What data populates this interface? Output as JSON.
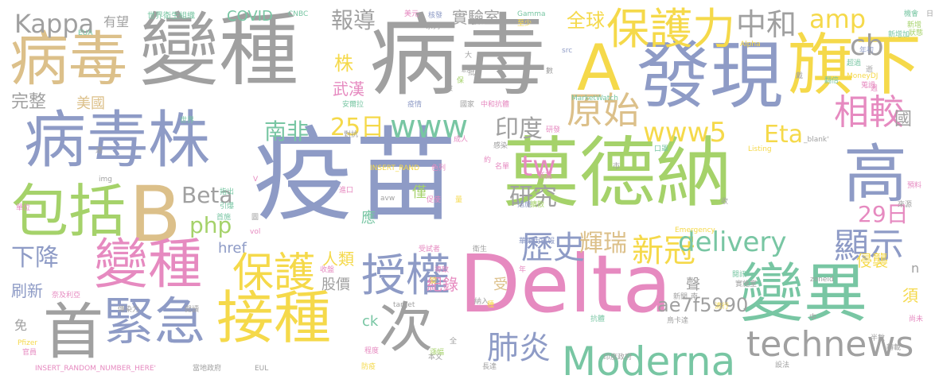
{
  "colors": {
    "background": "#ffffff",
    "gray": "#a0a0a0",
    "blue": "#8e9bc6",
    "green": "#a5d26a",
    "pink": "#e68ac0",
    "yellow": "#f5d94a",
    "tan": "#dcc08a",
    "teal": "#78c6a3",
    "orange": "#ee9a74"
  },
  "words": [
    {
      "text": "疫苗",
      "color": "blue"
    },
    {
      "text": "病毒",
      "color": "gray"
    },
    {
      "text": "變種",
      "color": "gray"
    },
    {
      "text": "Delta",
      "color": "pink"
    },
    {
      "text": "莫德納",
      "color": "green"
    },
    {
      "text": "病毒",
      "color": "tan"
    },
    {
      "text": "病毒株",
      "color": "blue"
    },
    {
      "text": "發現",
      "color": "blue"
    },
    {
      "text": "A",
      "color": "yellow"
    },
    {
      "text": "旗下",
      "color": "yellow"
    },
    {
      "text": "B",
      "color": "tan"
    },
    {
      "text": "包括",
      "color": "green"
    },
    {
      "text": "變種",
      "color": "pink"
    },
    {
      "text": "接種",
      "color": "yellow"
    },
    {
      "text": "首",
      "color": "gray"
    },
    {
      "text": "緊急",
      "color": "blue"
    },
    {
      "text": "變異",
      "color": "teal"
    },
    {
      "text": "高",
      "color": "blue"
    },
    {
      "text": "次",
      "color": "gray"
    },
    {
      "text": "授權",
      "color": "blue"
    },
    {
      "text": "Moderna",
      "color": "teal"
    },
    {
      "text": "technews",
      "color": "gray"
    },
    {
      "text": "保護力",
      "color": "yellow"
    },
    {
      "text": "保護",
      "color": "yellow"
    },
    {
      "text": "Kappa",
      "color": "gray"
    },
    {
      "text": "中和",
      "color": "gray"
    },
    {
      "text": "amp",
      "color": "yellow"
    },
    {
      "text": "cb",
      "color": "gray"
    },
    {
      "text": "相較",
      "color": "pink"
    },
    {
      "text": "原始",
      "color": "tan"
    },
    {
      "text": "www5",
      "color": "yellow"
    },
    {
      "text": "Eta",
      "color": "yellow"
    },
    {
      "text": "www",
      "color": "teal"
    },
    {
      "text": "印度",
      "color": "gray"
    },
    {
      "text": "25日",
      "color": "yellow"
    },
    {
      "text": "南非",
      "color": "teal"
    },
    {
      "text": "tw",
      "color": "pink"
    },
    {
      "text": "Beta",
      "color": "gray"
    },
    {
      "text": "php",
      "color": "green"
    },
    {
      "text": "研究",
      "color": "gray"
    },
    {
      "text": "新冠",
      "color": "yellow"
    },
    {
      "text": "delivery",
      "color": "teal"
    },
    {
      "text": "歷史",
      "color": "blue"
    },
    {
      "text": "輝瑞",
      "color": "tan"
    },
    {
      "text": "顯示",
      "color": "blue"
    },
    {
      "text": "29日",
      "color": "pink"
    },
    {
      "text": "肺炎",
      "color": "blue"
    },
    {
      "text": "ae7f5990",
      "color": "gray"
    },
    {
      "text": "國",
      "color": "gray"
    },
    {
      "text": "報導",
      "color": "gray"
    },
    {
      "text": "全球",
      "color": "yellow"
    },
    {
      "text": "實驗室",
      "color": "gray"
    },
    {
      "text": "株",
      "color": "yellow"
    },
    {
      "text": "武漢",
      "color": "pink"
    },
    {
      "text": "美國",
      "color": "tan"
    },
    {
      "text": "完整",
      "color": "gray"
    },
    {
      "text": "COVID",
      "color": "teal"
    },
    {
      "text": "有望",
      "color": "gray"
    },
    {
      "text": "下降",
      "color": "blue"
    },
    {
      "text": "人類",
      "color": "yellow"
    },
    {
      "text": "href",
      "color": "blue"
    },
    {
      "text": "股價",
      "color": "gray"
    },
    {
      "text": "紀錄",
      "color": "pink"
    },
    {
      "text": "侵襲",
      "color": "yellow"
    },
    {
      "text": "刷新",
      "color": "blue"
    },
    {
      "text": "應",
      "color": "teal"
    },
    {
      "text": "僅",
      "color": "green"
    },
    {
      "text": "受",
      "color": "tan"
    },
    {
      "text": "ck",
      "color": "teal"
    },
    {
      "text": "須",
      "color": "yellow"
    },
    {
      "text": "聲",
      "color": "gray"
    },
    {
      "text": "n",
      "color": "gray"
    },
    {
      "text": "免",
      "color": "gray"
    },
    {
      "text": "世界衛生組織",
      "color": "teal"
    },
    {
      "text": "CNBC",
      "color": "teal"
    },
    {
      "text": "美元",
      "color": "pink"
    },
    {
      "text": "核發",
      "color": "blue"
    },
    {
      "text": "Gamma",
      "color": "teal"
    },
    {
      "text": "機會",
      "color": "teal"
    },
    {
      "text": "日",
      "color": "gray"
    },
    {
      "text": "系列",
      "color": "gray"
    },
    {
      "text": "EUA",
      "color": "teal"
    },
    {
      "text": "至少",
      "color": "yellow"
    },
    {
      "text": "新增",
      "color": "green"
    },
    {
      "text": "新增加",
      "color": "teal"
    },
    {
      "text": "狀態",
      "color": "green"
    },
    {
      "text": "Alpha",
      "color": "yellow"
    },
    {
      "text": "MoneyDJ",
      "color": "yellow"
    },
    {
      "text": "MarketWatch",
      "color": "teal"
    },
    {
      "text": "安爾拉",
      "color": "teal"
    },
    {
      "text": "疫情",
      "color": "blue"
    },
    {
      "text": "國家",
      "color": "gray"
    },
    {
      "text": "中和抗體",
      "color": "pink"
    },
    {
      "text": "成人",
      "color": "pink"
    },
    {
      "text": "感染",
      "color": "gray"
    },
    {
      "text": "口罩",
      "color": "teal"
    },
    {
      "text": "Listing",
      "color": "yellow"
    },
    {
      "text": "_blank'",
      "color": "gray"
    },
    {
      "text": "INSERT_RAND",
      "color": "yellow"
    },
    {
      "text": "色列",
      "color": "pink"
    },
    {
      "text": "名單",
      "color": "pink"
    },
    {
      "text": "新高",
      "color": "pink"
    },
    {
      "text": "預料",
      "color": "pink"
    },
    {
      "text": "來源",
      "color": "gray"
    },
    {
      "text": "指出",
      "color": "teal"
    },
    {
      "text": "進口",
      "color": "pink"
    },
    {
      "text": "促使",
      "color": "pink"
    },
    {
      "text": "措施",
      "color": "blue"
    },
    {
      "text": "擴散",
      "color": "green"
    },
    {
      "text": "Emergency",
      "color": "yellow"
    },
    {
      "text": "zoneid",
      "color": "gray"
    },
    {
      "text": "閱訊",
      "color": "teal"
    },
    {
      "text": "實施室",
      "color": "gray"
    },
    {
      "text": "華爾街日報",
      "color": "blue"
    },
    {
      "text": "受試者",
      "color": "pink"
    },
    {
      "text": "衛生",
      "color": "gray"
    },
    {
      "text": "導致",
      "color": "pink"
    },
    {
      "text": "流行",
      "color": "yellow"
    },
    {
      "text": "鳥卡達",
      "color": "gray"
    },
    {
      "text": "奈及利亞",
      "color": "pink"
    },
    {
      "text": "傳染力",
      "color": "gray"
    },
    {
      "text": "閱讀",
      "color": "gray"
    },
    {
      "text": "Pfizer",
      "color": "yellow"
    },
    {
      "text": "官員",
      "color": "pink"
    },
    {
      "text": "INSERT_RANDOM_NUMBER_HERE'",
      "color": "pink"
    },
    {
      "text": "當地政府",
      "color": "gray"
    },
    {
      "text": "EUL",
      "color": "gray"
    },
    {
      "text": "防疫",
      "color": "yellow"
    },
    {
      "text": "本文",
      "color": "gray"
    },
    {
      "text": "長達",
      "color": "gray"
    },
    {
      "text": "印度政府",
      "color": "gray"
    },
    {
      "text": "設法",
      "color": "gray"
    },
    {
      "text": "半數",
      "color": "gray"
    },
    {
      "text": "轉載",
      "color": "gray"
    },
    {
      "text": "尚未",
      "color": "pink"
    },
    {
      "text": "img",
      "color": "gray"
    },
    {
      "text": "avw",
      "color": "gray"
    },
    {
      "text": "target",
      "color": "gray"
    },
    {
      "text": "vol",
      "color": "pink"
    },
    {
      "text": "收盤",
      "color": "pink"
    },
    {
      "text": "抗體",
      "color": "teal"
    },
    {
      "text": "新聞",
      "color": "gray"
    },
    {
      "text": "納入",
      "color": "gray"
    },
    {
      "text": "單位",
      "color": "pink"
    },
    {
      "text": "引爆",
      "color": "teal"
    },
    {
      "text": "首施",
      "color": "teal"
    },
    {
      "text": "年初",
      "color": "blue"
    },
    {
      "text": "超過",
      "color": "teal"
    },
    {
      "text": "數",
      "color": "gray"
    },
    {
      "text": "創",
      "color": "gray"
    },
    {
      "text": "src",
      "color": "blue"
    },
    {
      "text": "世界",
      "color": "teal"
    },
    {
      "text": "速",
      "color": "gray"
    },
    {
      "text": "對抗",
      "color": "gray"
    },
    {
      "text": "蒐證",
      "color": "pink"
    },
    {
      "text": "漲幅",
      "color": "green"
    },
    {
      "text": "程度",
      "color": "pink"
    },
    {
      "text": "變",
      "color": "yellow"
    },
    {
      "text": "研發",
      "color": "pink"
    },
    {
      "text": "翻倍",
      "color": "teal"
    },
    {
      "text": "逝",
      "color": "gray"
    },
    {
      "text": "保",
      "color": "green"
    },
    {
      "text": "約",
      "color": "pink"
    },
    {
      "text": "檢",
      "color": "gray"
    },
    {
      "text": "週",
      "color": "pink"
    },
    {
      "text": "V",
      "color": "pink"
    },
    {
      "text": "圖",
      "color": "gray"
    },
    {
      "text": "全",
      "color": "gray"
    },
    {
      "text": "中",
      "color": "gray"
    },
    {
      "text": "年",
      "color": "pink"
    },
    {
      "text": "收",
      "color": "gray"
    },
    {
      "text": "南",
      "color": "gray"
    },
    {
      "text": "種",
      "color": "yellow"
    },
    {
      "text": "量",
      "color": "yellow"
    },
    {
      "text": "戴",
      "color": "gray"
    },
    {
      "text": "大",
      "color": "gray"
    },
    {
      "text": "市",
      "color": "gray"
    },
    {
      "text": "批",
      "color": "gray"
    }
  ]
}
